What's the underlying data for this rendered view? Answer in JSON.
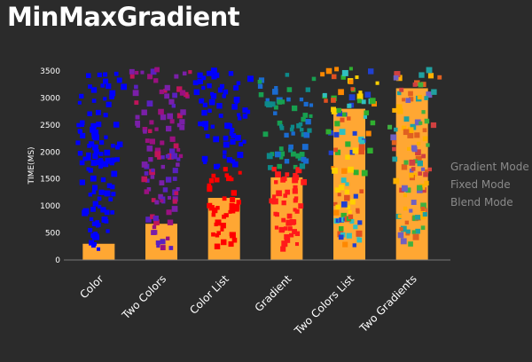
{
  "page": {
    "title": "MinMaxGradient"
  },
  "legend": {
    "items": [
      "Gradient Mode",
      "Fixed Mode",
      "Blend Mode"
    ]
  },
  "colors": {
    "background": "#2b2b2b",
    "bar": "#ffa733",
    "axis": "#777777",
    "text": "#ffffff"
  },
  "chart_data": {
    "type": "bar",
    "title": "MinMaxGradient",
    "xlabel": "",
    "ylabel": "TIME(MS)",
    "ylim": [
      0,
      3500
    ],
    "yticks": [
      0,
      500,
      1000,
      1500,
      2000,
      2500,
      3000,
      3500
    ],
    "grid": false,
    "categories": [
      "Color",
      "Two Colors",
      "Color List",
      "Gradient",
      "Two Colors List",
      "Two Gradients"
    ],
    "values": [
      300,
      670,
      1150,
      1530,
      2800,
      3180
    ],
    "overlay": "scatter of per-frame samples drawn as squares, colored by each mode's color setting",
    "point_colors": [
      [
        "#0000ff"
      ],
      [
        "#7a1fa8",
        "#c0145a",
        "#5a20c0",
        "#9a1080"
      ],
      [
        "#0000ff",
        "#ff0000"
      ],
      [
        "#ff1a1a",
        "#1a6bd0",
        "#17a050",
        "#0d8a8a"
      ],
      [
        "#ffd000",
        "#30b030",
        "#2040d0",
        "#e05020",
        "#30c0c0",
        "#ff8800"
      ],
      [
        "#ffb000",
        "#40b040",
        "#20a0a0",
        "#e06020",
        "#7060c0",
        "#d04040"
      ]
    ]
  }
}
